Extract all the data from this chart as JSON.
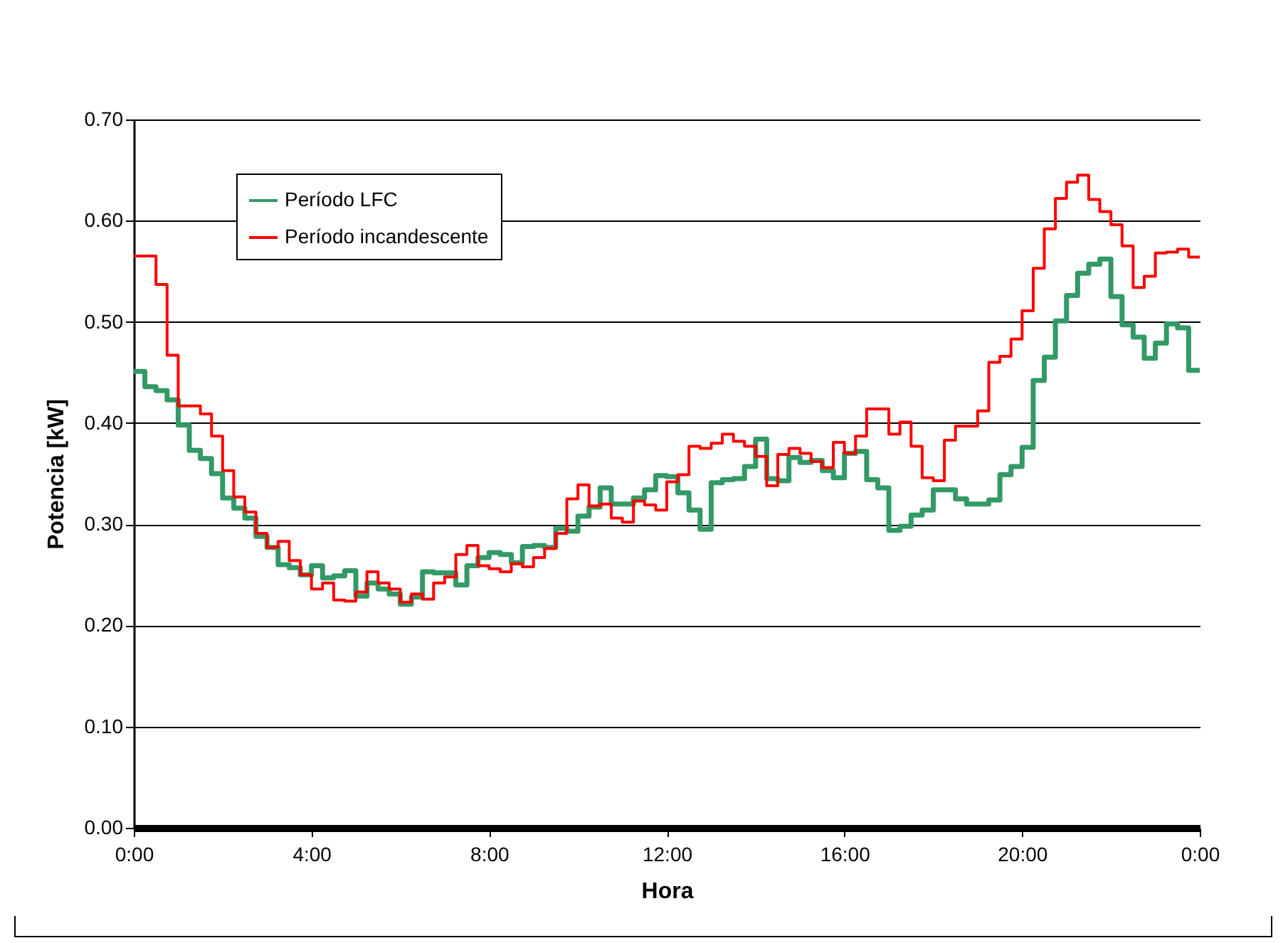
{
  "chart_data": {
    "type": "step",
    "xlabel": "Hora",
    "ylabel": "Potencia [kW]",
    "x": [
      0,
      0.25,
      0.5,
      0.75,
      1,
      1.25,
      1.5,
      1.75,
      2,
      2.25,
      2.5,
      2.75,
      3,
      3.25,
      3.5,
      3.75,
      4,
      4.25,
      4.5,
      4.75,
      5,
      5.25,
      5.5,
      5.75,
      6,
      6.25,
      6.5,
      6.75,
      7,
      7.25,
      7.5,
      7.75,
      8,
      8.25,
      8.5,
      8.75,
      9,
      9.25,
      9.5,
      9.75,
      10,
      10.25,
      10.5,
      10.75,
      11,
      11.25,
      11.5,
      11.75,
      12,
      12.25,
      12.5,
      12.75,
      13,
      13.25,
      13.5,
      13.75,
      14,
      14.25,
      14.5,
      14.75,
      15,
      15.25,
      15.5,
      15.75,
      16,
      16.25,
      16.5,
      16.75,
      17,
      17.25,
      17.5,
      17.75,
      18,
      18.25,
      18.5,
      18.75,
      19,
      19.25,
      19.5,
      19.75,
      20,
      20.25,
      20.5,
      20.75,
      21,
      21.25,
      21.5,
      21.75,
      22,
      22.25,
      22.5,
      22.75,
      23,
      23.25,
      23.5,
      23.75,
      24
    ],
    "series": [
      {
        "name": "Período LFC",
        "color": "#339966",
        "values": [
          0.451,
          0.436,
          0.432,
          0.423,
          0.398,
          0.373,
          0.365,
          0.35,
          0.326,
          0.316,
          0.306,
          0.288,
          0.277,
          0.26,
          0.257,
          0.25,
          0.259,
          0.247,
          0.249,
          0.254,
          0.229,
          0.242,
          0.236,
          0.231,
          0.221,
          0.228,
          0.253,
          0.252,
          0.252,
          0.24,
          0.259,
          0.267,
          0.272,
          0.27,
          0.262,
          0.278,
          0.279,
          0.277,
          0.296,
          0.293,
          0.308,
          0.317,
          0.336,
          0.32,
          0.32,
          0.326,
          0.334,
          0.348,
          0.347,
          0.331,
          0.314,
          0.295,
          0.341,
          0.344,
          0.345,
          0.357,
          0.384,
          0.345,
          0.343,
          0.366,
          0.361,
          0.363,
          0.353,
          0.346,
          0.37,
          0.372,
          0.344,
          0.336,
          0.294,
          0.298,
          0.309,
          0.314,
          0.334,
          0.334,
          0.325,
          0.32,
          0.32,
          0.324,
          0.349,
          0.357,
          0.376,
          0.442,
          0.465,
          0.501,
          0.526,
          0.548,
          0.557,
          0.562,
          0.525,
          0.497,
          0.485,
          0.464,
          0.479,
          0.498,
          0.494,
          0.452,
          0.452
        ]
      },
      {
        "name": "Período incandescente",
        "color": "#ff0000",
        "values": [
          0.565,
          0.565,
          0.537,
          0.467,
          0.417,
          0.417,
          0.409,
          0.387,
          0.353,
          0.327,
          0.312,
          0.291,
          0.277,
          0.283,
          0.264,
          0.25,
          0.236,
          0.242,
          0.225,
          0.224,
          0.233,
          0.253,
          0.242,
          0.236,
          0.223,
          0.231,
          0.226,
          0.242,
          0.248,
          0.27,
          0.279,
          0.259,
          0.256,
          0.253,
          0.261,
          0.258,
          0.267,
          0.276,
          0.291,
          0.325,
          0.339,
          0.318,
          0.32,
          0.306,
          0.302,
          0.323,
          0.319,
          0.314,
          0.342,
          0.349,
          0.377,
          0.375,
          0.38,
          0.389,
          0.382,
          0.377,
          0.367,
          0.338,
          0.369,
          0.375,
          0.37,
          0.362,
          0.356,
          0.381,
          0.37,
          0.387,
          0.414,
          0.414,
          0.389,
          0.401,
          0.377,
          0.346,
          0.343,
          0.383,
          0.397,
          0.397,
          0.412,
          0.46,
          0.466,
          0.483,
          0.511,
          0.553,
          0.592,
          0.622,
          0.638,
          0.645,
          0.621,
          0.609,
          0.596,
          0.575,
          0.534,
          0.545,
          0.568,
          0.569,
          0.572,
          0.564,
          0.564
        ]
      }
    ],
    "xlim": [
      0,
      24
    ],
    "xticks": [
      {
        "value": 0,
        "label": "0:00"
      },
      {
        "value": 4,
        "label": "4:00"
      },
      {
        "value": 8,
        "label": "8:00"
      },
      {
        "value": 12,
        "label": "12:00"
      },
      {
        "value": 16,
        "label": "16:00"
      },
      {
        "value": 20,
        "label": "20:00"
      },
      {
        "value": 24,
        "label": "0:00"
      }
    ],
    "ylim": [
      0,
      0.7
    ],
    "yticks": [
      {
        "value": 0,
        "label": "0.00"
      },
      {
        "value": 0.1,
        "label": "0.10"
      },
      {
        "value": 0.2,
        "label": "0.20"
      },
      {
        "value": 0.3,
        "label": "0.30"
      },
      {
        "value": 0.4,
        "label": "0.40"
      },
      {
        "value": 0.5,
        "label": "0.50"
      },
      {
        "value": 0.6,
        "label": "0.60"
      },
      {
        "value": 0.7,
        "label": "0.70"
      }
    ],
    "grid": "y",
    "legend": "top left",
    "marker": "none",
    "line_style": "solid"
  }
}
